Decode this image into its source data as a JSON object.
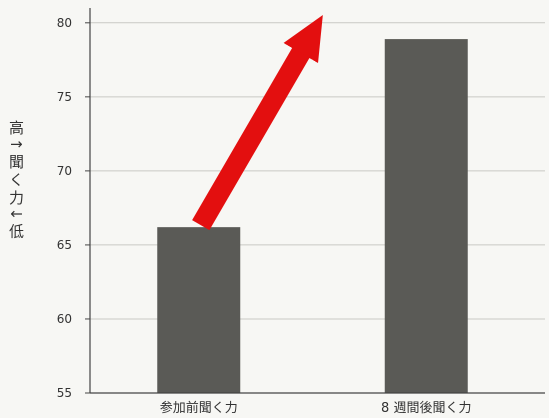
{
  "chart_data": {
    "type": "bar",
    "categories": [
      "参加前聞く力",
      "8 週間後聞く力"
    ],
    "values": [
      66.2,
      78.9
    ],
    "ylabel": "高↑聞く力↓低",
    "ylim": [
      55,
      81
    ],
    "yticks": [
      55,
      60,
      65,
      70,
      75,
      80
    ],
    "grid": true,
    "annotations": [
      {
        "type": "arrow",
        "from_category": "参加前聞く力",
        "to_category": "8 週間後聞く力",
        "color": "#e30f0f"
      }
    ],
    "colors": {
      "bar": "#5a5a56",
      "grid": "#c9c9c4",
      "arrow": "#e30f0f",
      "axis": "#444444"
    }
  }
}
